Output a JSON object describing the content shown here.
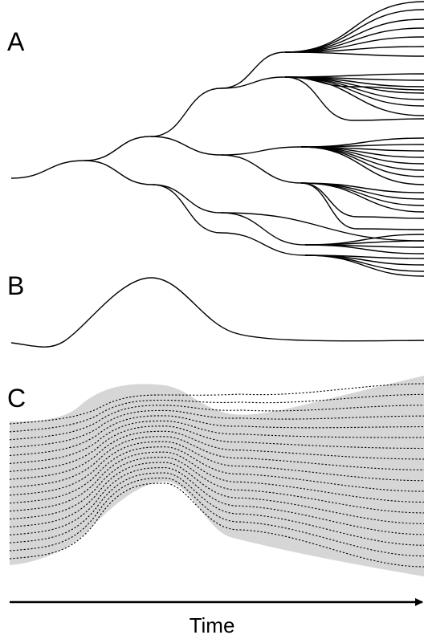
{
  "panels": {
    "a": {
      "label": "A"
    },
    "b": {
      "label": "B"
    },
    "c": {
      "label": "C"
    }
  },
  "time_axis": {
    "label": "Time"
  },
  "colors": {
    "line": "#000000",
    "band_fill": "#d6d6d6",
    "background": "#ffffff"
  },
  "panel_c": {
    "dotted_line_count": 18
  }
}
